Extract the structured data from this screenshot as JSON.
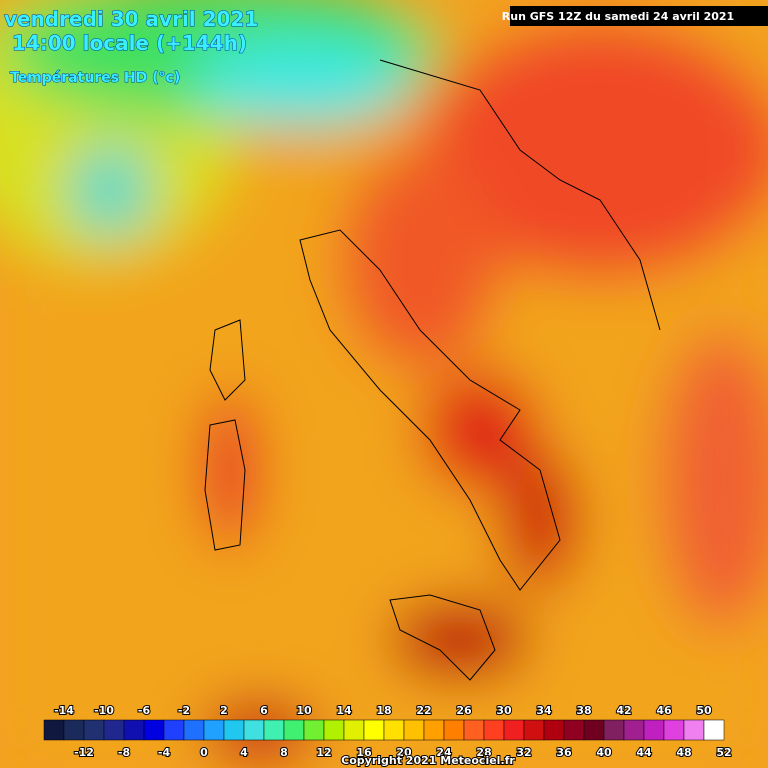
{
  "header": {
    "date": "vendredi 30 avril 2021",
    "time": "14:00 locale (+144h)",
    "parameter": "Températures HD (°c)",
    "run": "Run GFS 12Z du samedi 24 avril 2021"
  },
  "legend": {
    "top_labels": [
      -14,
      -10,
      -6,
      -2,
      2,
      6,
      10,
      14,
      18,
      22,
      26,
      30,
      34,
      38,
      42,
      46,
      50
    ],
    "bottom_labels": [
      -12,
      -8,
      -4,
      0,
      4,
      8,
      12,
      16,
      20,
      24,
      28,
      32,
      36,
      40,
      44,
      48,
      52
    ],
    "colors": [
      "#101840",
      "#1a2a5a",
      "#203070",
      "#202890",
      "#1010b0",
      "#0000e0",
      "#2040ff",
      "#2070ff",
      "#20a0ff",
      "#20c8f0",
      "#40e0e0",
      "#40f0b0",
      "#40f070",
      "#70f030",
      "#b0f000",
      "#e0f000",
      "#ffff00",
      "#ffe000",
      "#ffc000",
      "#ffa000",
      "#ff8000",
      "#ff6020",
      "#ff4020",
      "#f02020",
      "#d01010",
      "#b00010",
      "#900020",
      "#700020",
      "#802060",
      "#a02090",
      "#c020c0",
      "#e040e0",
      "#f080f0",
      "#ffffff"
    ]
  },
  "footer": {
    "copyright": "Copyright 2021 Meteociel.fr"
  }
}
